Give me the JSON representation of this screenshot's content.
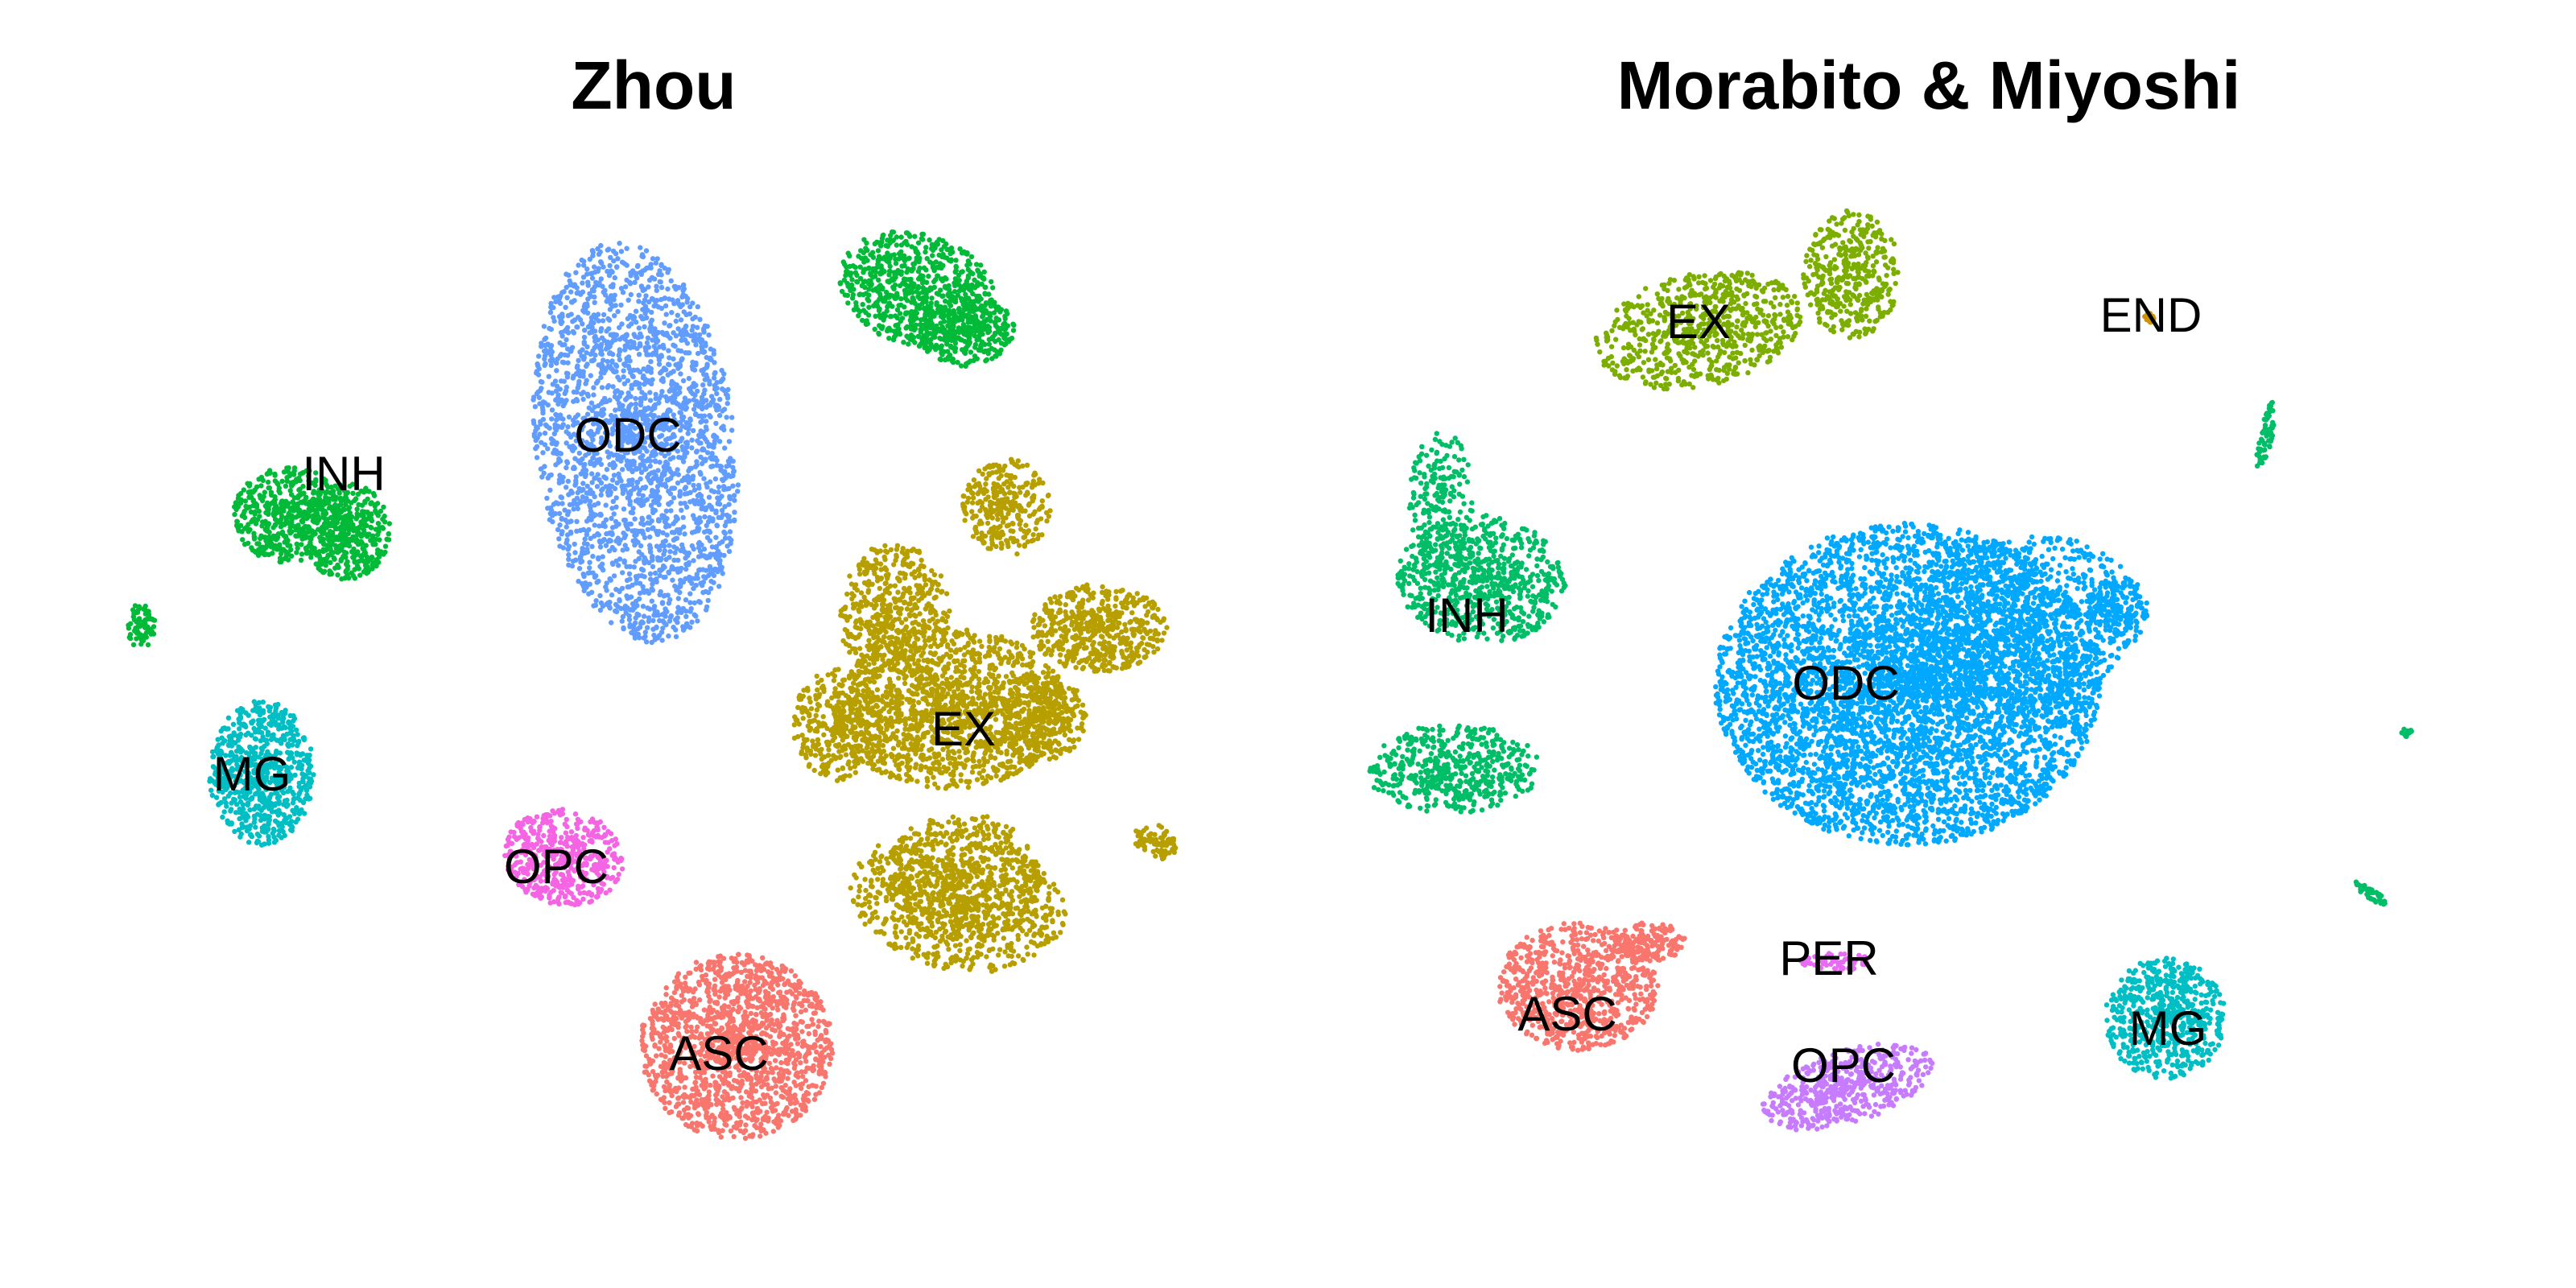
{
  "chart_data": [
    {
      "type": "scatter",
      "title": "Zhou",
      "xlabel": "",
      "ylabel": "",
      "grid": false,
      "legend": "none",
      "clusters": [
        {
          "name": "ODC",
          "color": "#619CFF"
        },
        {
          "name": "INH",
          "color": "#00BA38"
        },
        {
          "name": "MG",
          "color": "#00BFC4"
        },
        {
          "name": "OPC",
          "color": "#F564E3"
        },
        {
          "name": "ASC",
          "color": "#F8766D"
        },
        {
          "name": "EX",
          "color": "#B79F00"
        }
      ]
    },
    {
      "type": "scatter",
      "title": "Morabito & Miyoshi",
      "xlabel": "",
      "ylabel": "",
      "grid": false,
      "legend": "none",
      "clusters": [
        {
          "name": "EX",
          "color": "#7CAE00"
        },
        {
          "name": "END",
          "color": "#CD9600"
        },
        {
          "name": "INH",
          "color": "#00BE67"
        },
        {
          "name": "ODC",
          "color": "#00A9FF"
        },
        {
          "name": "ASC",
          "color": "#F8766D"
        },
        {
          "name": "PER",
          "color": "#E76BF3"
        },
        {
          "name": "OPC",
          "color": "#C77CFF"
        },
        {
          "name": "MG",
          "color": "#00BFC4"
        }
      ]
    }
  ]
}
